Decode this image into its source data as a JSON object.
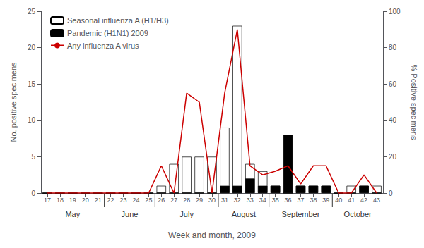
{
  "chart_data": {
    "type": "bar",
    "x": [
      17,
      18,
      19,
      20,
      21,
      22,
      23,
      24,
      25,
      26,
      27,
      28,
      29,
      30,
      31,
      32,
      33,
      34,
      35,
      36,
      37,
      38,
      39,
      40,
      41,
      42,
      43
    ],
    "xlim": [
      16.5,
      43.5
    ],
    "xticks": [
      17,
      18,
      19,
      20,
      21,
      22,
      23,
      24,
      25,
      26,
      27,
      28,
      29,
      30,
      31,
      32,
      33,
      34,
      35,
      36,
      37,
      38,
      39,
      40,
      41,
      42,
      43
    ],
    "xlabel": "Week and month, 2009",
    "ylabel": "No. positive specimens",
    "y2label": "% Positive specimens",
    "ylim": [
      0,
      25
    ],
    "yticks": [
      0,
      5,
      10,
      15,
      20,
      25
    ],
    "y2lim": [
      0,
      100
    ],
    "y2ticks": [
      0,
      20,
      40,
      60,
      80,
      100
    ],
    "stacked": true,
    "grid": false,
    "legend": "upper left",
    "series": [
      {
        "name": "Seasonal influenza A (H1/H3)",
        "type": "bar",
        "color": "#ffffff",
        "values": [
          0,
          0,
          0,
          0,
          0,
          0,
          0,
          0,
          0,
          1,
          4,
          5,
          5,
          5,
          9,
          23,
          4,
          3,
          1,
          0,
          1,
          1,
          1,
          0,
          1,
          1,
          1
        ]
      },
      {
        "name": "Pandemic (H1N1) 2009",
        "type": "bar",
        "color": "#000000",
        "values": [
          0,
          0,
          0,
          0,
          0,
          0,
          0,
          0,
          0,
          0,
          0,
          0,
          0,
          0,
          1,
          1,
          2,
          1,
          1,
          8,
          1,
          1,
          1,
          0,
          0,
          1,
          0
        ]
      },
      {
        "name": "Any influenza A virus",
        "type": "line",
        "color": "#cc0000",
        "axis": "y2",
        "values": [
          0,
          0,
          0,
          0,
          0,
          0,
          0,
          0,
          0,
          15,
          0,
          55,
          50,
          0,
          55,
          90,
          15,
          10,
          12,
          15,
          5,
          15,
          15,
          0,
          0,
          10,
          0
        ]
      }
    ],
    "annotations": [
      {
        "text": "May",
        "x": 19.0,
        "start": 16.5
      },
      {
        "text": "June",
        "x": 23.5,
        "start": 21.5
      },
      {
        "text": "July",
        "x": 28.0,
        "start": 25.5
      },
      {
        "text": "August",
        "x": 32.5,
        "start": 30.5
      },
      {
        "text": "September",
        "x": 37.0,
        "start": 34.5
      },
      {
        "text": "October",
        "x": 41.5,
        "start": 39.5
      }
    ]
  }
}
